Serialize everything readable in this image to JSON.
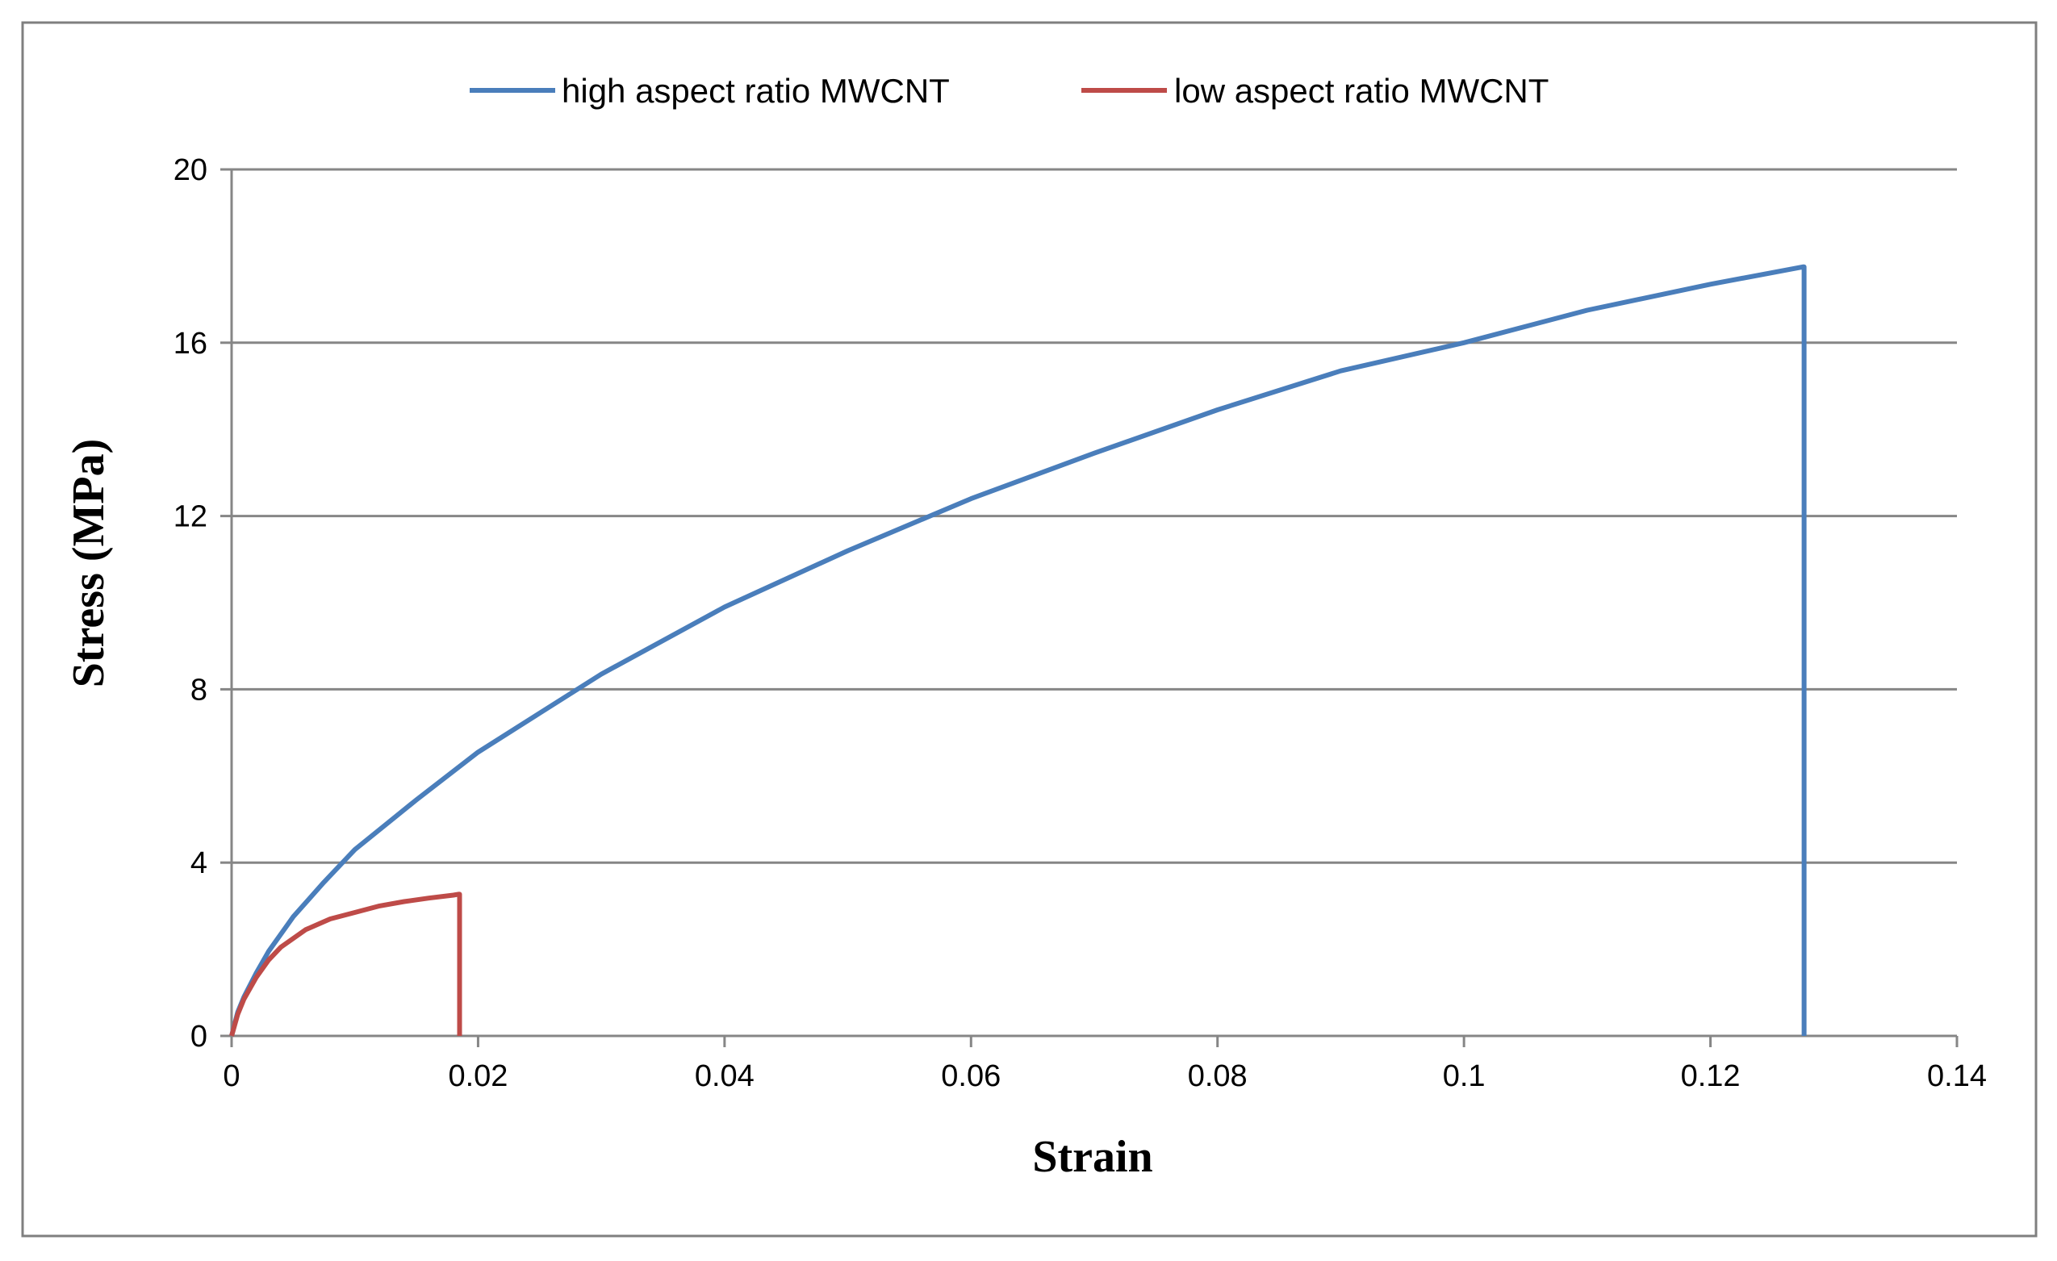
{
  "chart_data": {
    "type": "line",
    "title": "",
    "xlabel": "Strain",
    "ylabel": "Stress (MPa)",
    "xlim": [
      0,
      0.14
    ],
    "ylim": [
      0,
      20
    ],
    "x_ticks": [
      "0",
      "0.02",
      "0.04",
      "0.06",
      "0.08",
      "0.1",
      "0.12",
      "0.14"
    ],
    "y_ticks": [
      "0",
      "4",
      "8",
      "12",
      "16",
      "20"
    ],
    "x_tick_values": [
      0,
      0.02,
      0.04,
      0.06,
      0.08,
      0.1,
      0.12,
      0.14
    ],
    "y_tick_values": [
      0,
      4,
      8,
      12,
      16,
      20
    ],
    "grid": "horizontal",
    "legend_position": "top",
    "series": [
      {
        "name": "high aspect ratio MWCNT",
        "color": "#4a7ebb",
        "x": [
          0,
          0.0005,
          0.001,
          0.002,
          0.003,
          0.005,
          0.0075,
          0.01,
          0.015,
          0.02,
          0.025,
          0.03,
          0.04,
          0.05,
          0.06,
          0.07,
          0.08,
          0.09,
          0.1,
          0.11,
          0.12,
          0.1275,
          0.1276,
          0.1276
        ],
        "y": [
          0,
          0.55,
          0.9,
          1.45,
          1.95,
          2.75,
          3.55,
          4.3,
          5.45,
          6.55,
          7.45,
          8.35,
          9.9,
          11.2,
          12.4,
          13.45,
          14.45,
          15.35,
          16.0,
          16.75,
          17.35,
          17.75,
          17.75,
          0
        ]
      },
      {
        "name": "low aspect ratio MWCNT",
        "color": "#be4b48",
        "x": [
          0,
          0.0005,
          0.001,
          0.002,
          0.003,
          0.004,
          0.006,
          0.008,
          0.01,
          0.012,
          0.014,
          0.016,
          0.018,
          0.0184,
          0.0185,
          0.0185
        ],
        "y": [
          0,
          0.5,
          0.85,
          1.35,
          1.75,
          2.05,
          2.45,
          2.7,
          2.85,
          3.0,
          3.1,
          3.18,
          3.25,
          3.27,
          3.27,
          0
        ]
      }
    ]
  }
}
